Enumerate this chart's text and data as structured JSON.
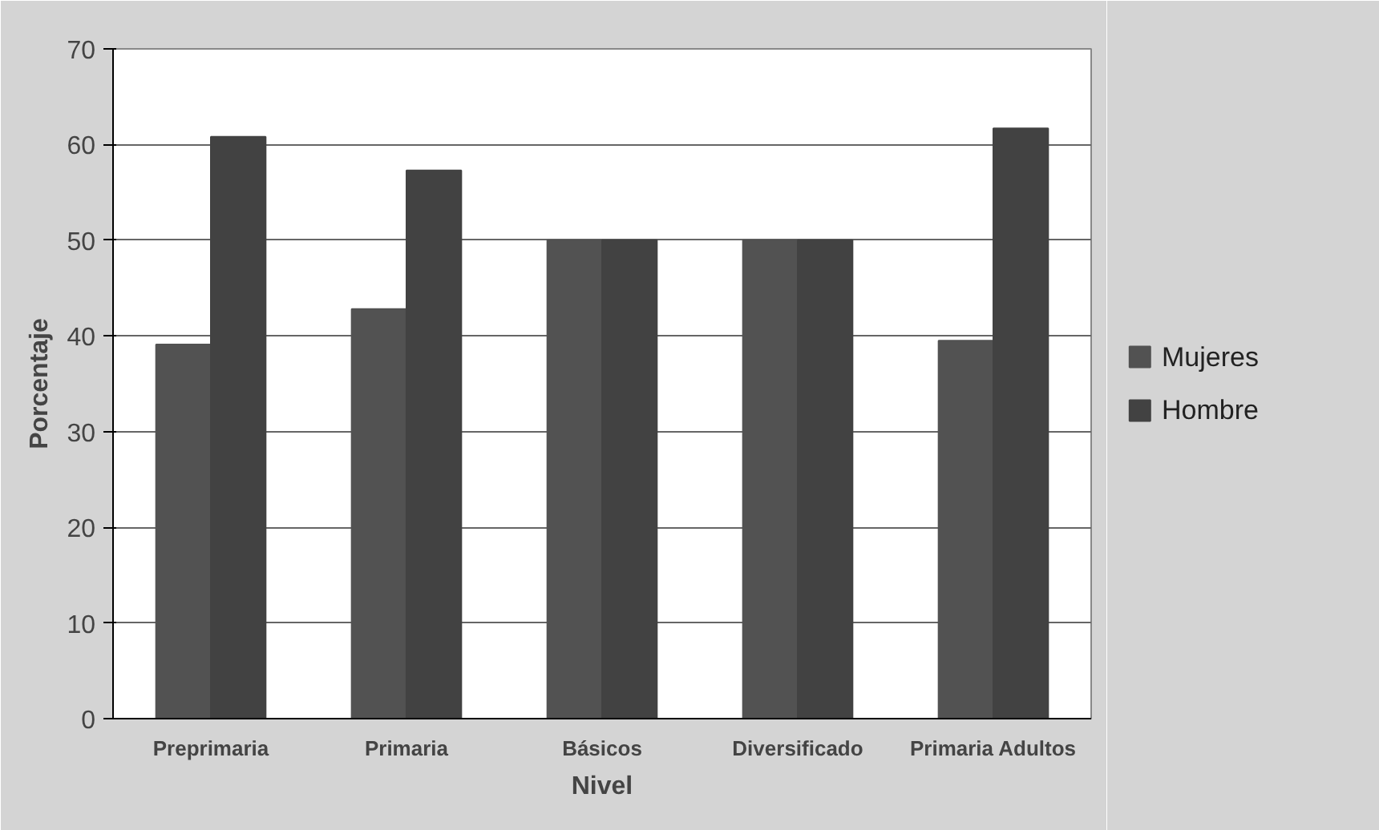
{
  "chart_data": {
    "type": "bar",
    "xlabel": "Nivel",
    "ylabel": "Porcentaje",
    "categories": [
      "Preprimaria",
      "Primaria",
      "Básicos",
      "Diversificado",
      "Primaria Adultos"
    ],
    "series": [
      {
        "name": "Mujeres",
        "color": "#525252",
        "values": [
          39.1,
          42.8,
          50,
          50,
          39.5
        ]
      },
      {
        "name": "Hombre",
        "color": "#424242",
        "values": [
          60.8,
          57.3,
          50,
          50,
          61.7
        ]
      }
    ],
    "ylim": [
      0,
      70
    ],
    "yticks": [
      0,
      10,
      20,
      30,
      40,
      50,
      60,
      70
    ],
    "grid": "y",
    "legend": "right"
  }
}
